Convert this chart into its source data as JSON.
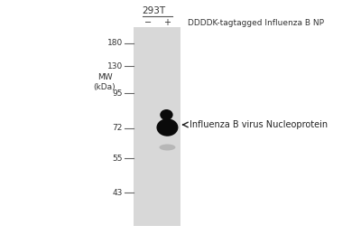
{
  "bg_color": "white",
  "gel_color": "#d8d8d8",
  "mw_markers": [
    180,
    130,
    95,
    72,
    55,
    43
  ],
  "mw_label_line1": "MW",
  "mw_label_line2": "(kDa)",
  "cell_line": "293T",
  "lane_labels": [
    "−",
    "+"
  ],
  "header_text": "DDDDK-tagtagged Influenza B NP",
  "band_main_color": "#0a0a0a",
  "band_faint_color": "#aaaaaa",
  "arrow_label": "Influenza B virus Nucleoprotein",
  "font_size_ticks": 6.5,
  "font_size_labels": 7.0,
  "font_size_header": 6.5,
  "font_size_celline": 7.5,
  "font_size_arrow": 7.0
}
